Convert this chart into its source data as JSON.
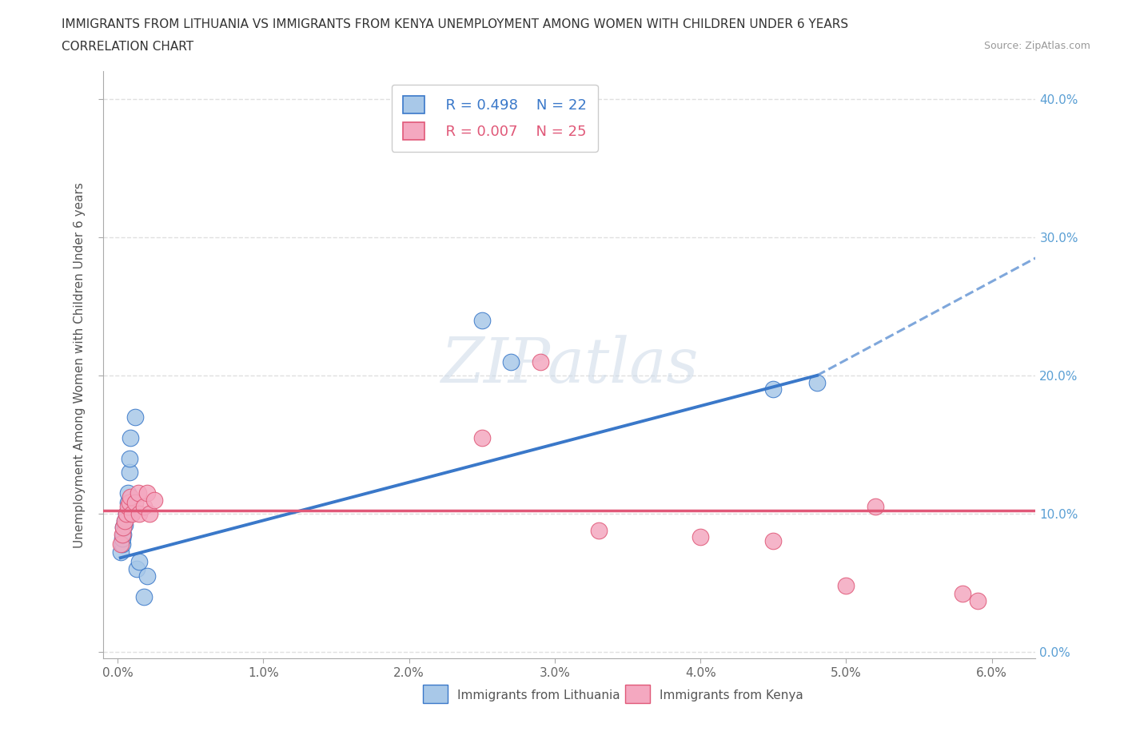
{
  "title_line1": "IMMIGRANTS FROM LITHUANIA VS IMMIGRANTS FROM KENYA UNEMPLOYMENT AMONG WOMEN WITH CHILDREN UNDER 6 YEARS",
  "title_line2": "CORRELATION CHART",
  "source": "Source: ZipAtlas.com",
  "ylabel": "Unemployment Among Women with Children Under 6 years",
  "xlim": [
    -0.001,
    0.063
  ],
  "ylim": [
    -0.005,
    0.42
  ],
  "xticks": [
    0.0,
    0.01,
    0.02,
    0.03,
    0.04,
    0.05,
    0.06
  ],
  "yticks": [
    0.0,
    0.1,
    0.2,
    0.3,
    0.4
  ],
  "ytick_labels": [
    "0.0%",
    "10.0%",
    "20.0%",
    "30.0%",
    "40.0%"
  ],
  "xtick_labels": [
    "0.0%",
    "1.0%",
    "2.0%",
    "3.0%",
    "4.0%",
    "5.0%",
    "6.0%"
  ],
  "legend_r1": "R = 0.498",
  "legend_n1": "N = 22",
  "legend_r2": "R = 0.007",
  "legend_n2": "N = 25",
  "color_lithuania": "#a8c8e8",
  "color_kenya": "#f4a8c0",
  "color_line_lithuania": "#3a78c9",
  "color_line_kenya": "#e05878",
  "color_right_axis": "#5a9fd4",
  "background_color": "#ffffff",
  "grid_color": "#e0e0e0",
  "watermark": "ZIPatlas",
  "lithuania_x": [
    0.0002,
    0.0003,
    0.0003,
    0.0004,
    0.0004,
    0.0005,
    0.0005,
    0.0006,
    0.0007,
    0.0007,
    0.0008,
    0.0008,
    0.0009,
    0.0012,
    0.0013,
    0.0015,
    0.0018,
    0.002,
    0.025,
    0.027,
    0.045,
    0.048
  ],
  "lithuania_y": [
    0.072,
    0.078,
    0.082,
    0.085,
    0.09,
    0.092,
    0.095,
    0.1,
    0.108,
    0.115,
    0.13,
    0.14,
    0.155,
    0.17,
    0.06,
    0.065,
    0.04,
    0.055,
    0.24,
    0.21,
    0.19,
    0.195
  ],
  "kenya_x": [
    0.0002,
    0.0003,
    0.0004,
    0.0005,
    0.0006,
    0.0007,
    0.0008,
    0.0009,
    0.001,
    0.0012,
    0.0014,
    0.0015,
    0.0018,
    0.002,
    0.0022,
    0.0025,
    0.025,
    0.029,
    0.033,
    0.04,
    0.045,
    0.05,
    0.052,
    0.058,
    0.059
  ],
  "kenya_y": [
    0.078,
    0.085,
    0.09,
    0.095,
    0.1,
    0.105,
    0.108,
    0.112,
    0.1,
    0.108,
    0.115,
    0.1,
    0.105,
    0.115,
    0.1,
    0.11,
    0.155,
    0.21,
    0.088,
    0.083,
    0.08,
    0.048,
    0.105,
    0.042,
    0.037
  ],
  "line_lith_x0": 0.0002,
  "line_lith_y0": 0.068,
  "line_lith_x1": 0.048,
  "line_lith_y1": 0.2,
  "line_lith_ext_x1": 0.063,
  "line_lith_ext_y1": 0.285,
  "line_ken_y": 0.102
}
